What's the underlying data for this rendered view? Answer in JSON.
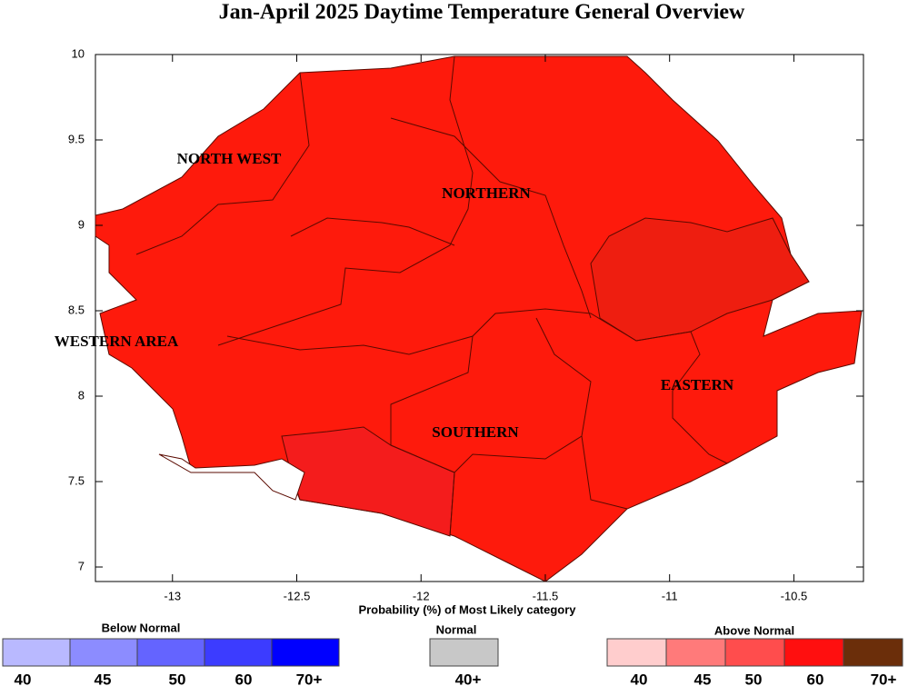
{
  "title": "Jan-April 2025  Daytime Temperature General Overview",
  "map": {
    "xlim": [
      -13.31,
      -10.22
    ],
    "ylim": [
      6.915,
      10
    ],
    "xticks": [
      -13,
      -12.5,
      -12,
      -11.5,
      -11,
      -10.5
    ],
    "yticks": [
      7,
      7.5,
      8,
      8.5,
      9,
      9.5,
      10
    ],
    "xlabel": "Probability (%) of Most Likely category",
    "regions": [
      "NORTH WEST",
      "NORTHERN",
      "WESTERN AREA",
      "EASTERN",
      "SOUTHERN"
    ]
  },
  "legend": [
    {
      "title": "Below Normal",
      "labels": [
        "40",
        "45",
        "50",
        "60",
        "70+"
      ],
      "colors": [
        "#b9b9ff",
        "#8c8cff",
        "#6464ff",
        "#3c3cff",
        "#0000ff"
      ]
    },
    {
      "title": "Normal",
      "labels": [
        "40+"
      ],
      "colors": [
        "#c8c8c8"
      ]
    },
    {
      "title": "Above Normal",
      "labels": [
        "40",
        "45",
        "50",
        "60",
        "70+"
      ],
      "colors": [
        "#ffcdcd",
        "#ff7a7a",
        "#ff4d4d",
        "#ff0f0f",
        "#6b2e0a"
      ]
    }
  ]
}
